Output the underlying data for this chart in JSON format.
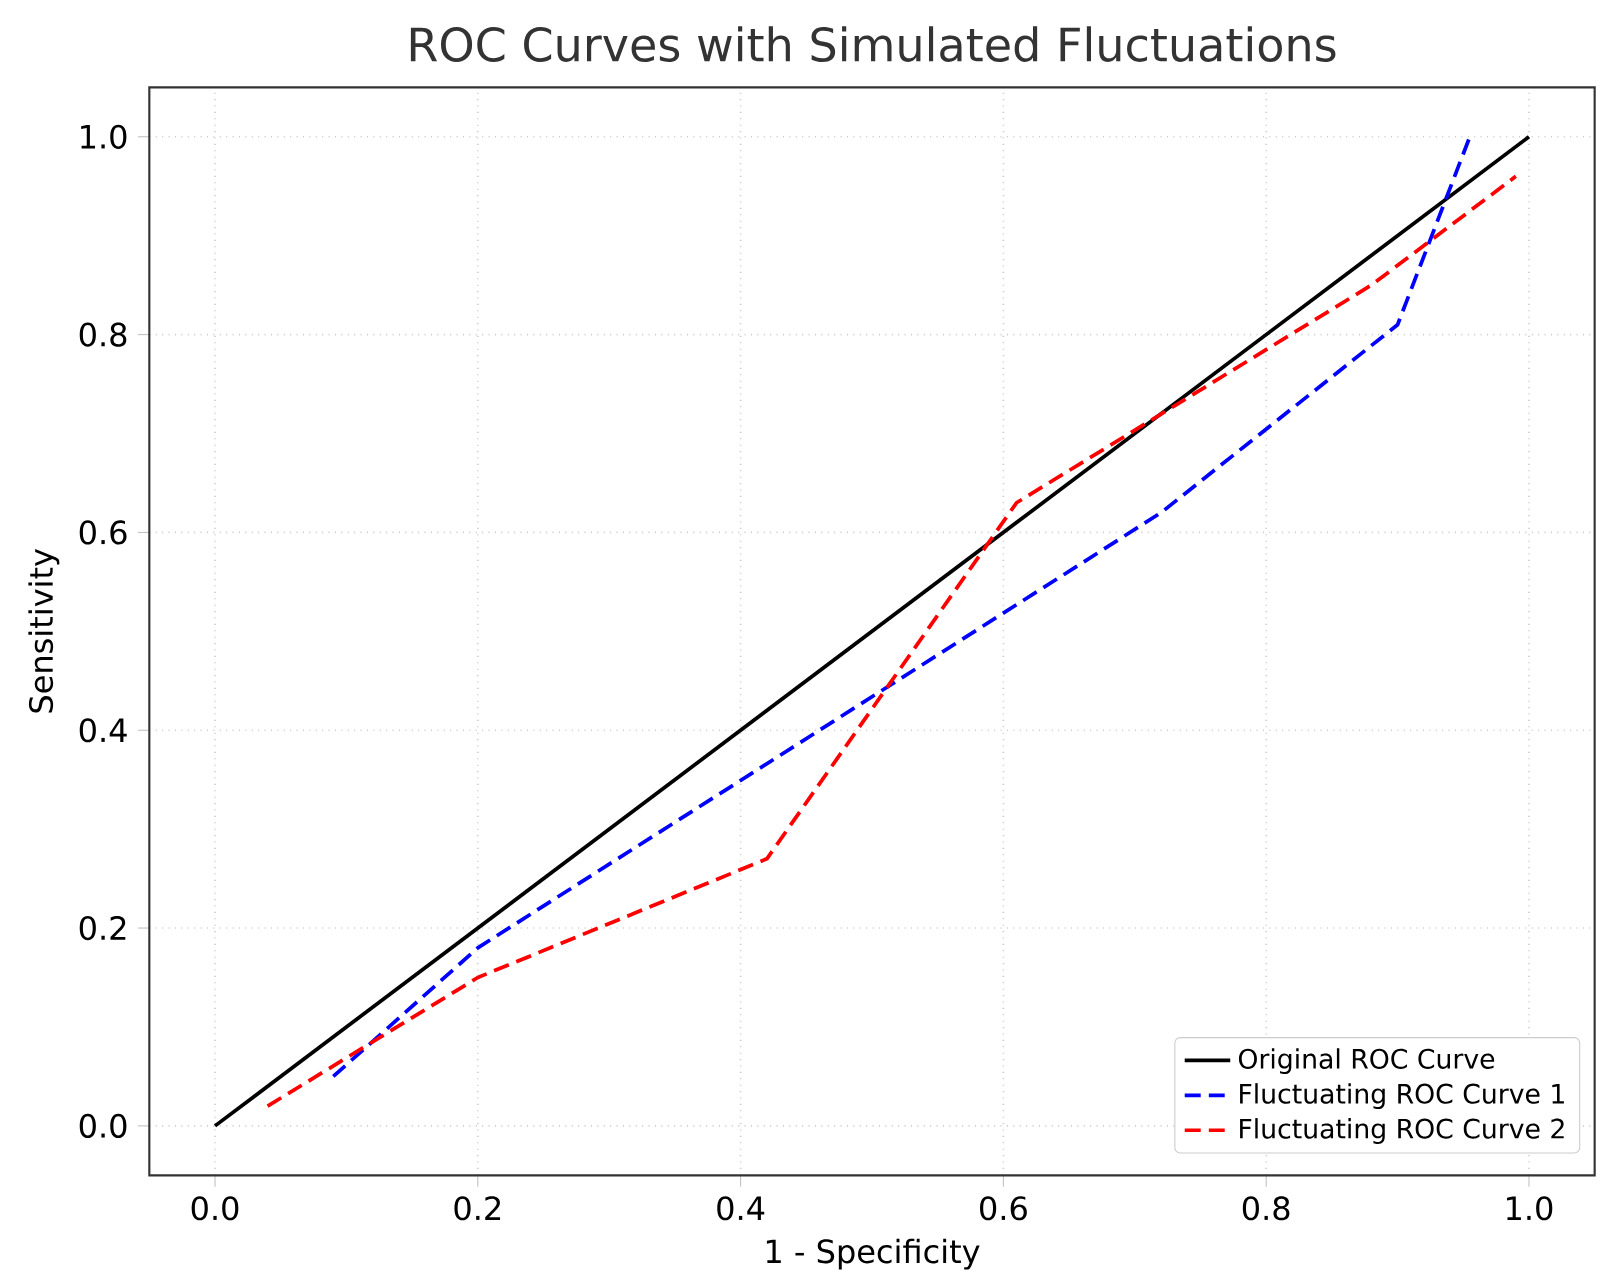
{
  "chart_data": {
    "type": "line",
    "title": "ROC Curves with Simulated Fluctuations",
    "xlabel": "1 - Specificity",
    "ylabel": "Sensitivity",
    "xlim": [
      -0.05,
      1.05
    ],
    "ylim": [
      -0.05,
      1.05
    ],
    "xticks": [
      {
        "value": 0,
        "label": "0.0"
      },
      {
        "value": 0.2,
        "label": "0.2"
      },
      {
        "value": 0.4,
        "label": "0.4"
      },
      {
        "value": 0.6,
        "label": "0.6"
      },
      {
        "value": 0.8,
        "label": "0.8"
      },
      {
        "value": 1,
        "label": "1.0"
      }
    ],
    "yticks": [
      {
        "value": 0,
        "label": "0.0"
      },
      {
        "value": 0.2,
        "label": "0.2"
      },
      {
        "value": 0.4,
        "label": "0.4"
      },
      {
        "value": 0.6,
        "label": "0.6"
      },
      {
        "value": 0.8,
        "label": "0.8"
      },
      {
        "value": 1,
        "label": "1.0"
      }
    ],
    "grid": true,
    "legend": "bottom right",
    "series": [
      {
        "name": "Original ROC Curve",
        "color": "#000000",
        "line_style": "solid",
        "x": [
          0,
          1
        ],
        "values": [
          0,
          1
        ]
      },
      {
        "name": "Fluctuating ROC Curve 1",
        "color": "#0000ff",
        "line_style": "dashed",
        "x": [
          0.09,
          0.2,
          0.72,
          0.9,
          0.955
        ],
        "values": [
          0.05,
          0.18,
          0.62,
          0.81,
          1.0
        ]
      },
      {
        "name": "Fluctuating ROC Curve 2",
        "color": "#ff0000",
        "line_style": "dashed",
        "x": [
          0.04,
          0.2,
          0.42,
          0.61,
          0.88,
          0.99
        ],
        "values": [
          0.02,
          0.15,
          0.27,
          0.63,
          0.85,
          0.96
        ]
      }
    ]
  }
}
